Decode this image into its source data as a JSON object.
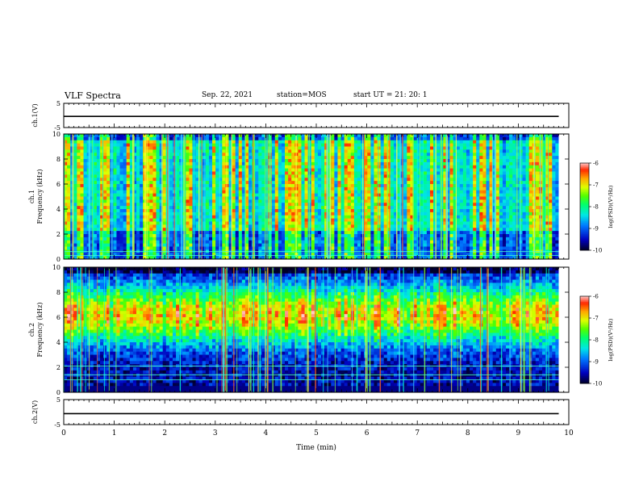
{
  "header": {
    "title": "VLF Spectra",
    "date": "Sep. 22, 2021",
    "station": "station=MOS",
    "start_ut": "start UT =  21: 20: 1"
  },
  "colors": {
    "spectrum": [
      "#000000",
      "#1400a8",
      "#0020ff",
      "#0090ff",
      "#00e0ff",
      "#00ff80",
      "#40ff00",
      "#c8ff00",
      "#ffff00",
      "#ff9000",
      "#ff2000",
      "#d0d0d0",
      "#ffffff"
    ],
    "trace": "#000000"
  },
  "chart_data": [
    {
      "type": "line",
      "panel": "ch1-waveform",
      "ylabel": "ch.1(V)",
      "ylim": [
        -5,
        5
      ],
      "yticks": [
        "5",
        "-5"
      ],
      "x": [
        0,
        9.8
      ],
      "y": [
        -0.4,
        -0.4
      ]
    },
    {
      "type": "heatmap",
      "panel": "ch1-spectrogram",
      "ylabel": "ch.1\nFrequency  (kHz)",
      "ylim": [
        0,
        10
      ],
      "yticks": [
        "0",
        "2",
        "4",
        "6",
        "8",
        "10"
      ],
      "xlim": [
        0,
        9.8
      ],
      "colorbar": {
        "label": "log(PSD)(V²/Hz)",
        "range": [
          -10,
          -6
        ],
        "ticks": [
          "-6",
          "-7",
          "-8",
          "-9",
          "-10"
        ]
      },
      "description_levels": {
        "background_low": -9.5,
        "burst_peak": -6.8,
        "narrowband_lines_kHz": [
          0.3,
          0.6
        ]
      }
    },
    {
      "type": "heatmap",
      "panel": "ch2-spectrogram",
      "ylabel": "ch.2\nFrequency  (kHz)",
      "ylim": [
        0,
        10
      ],
      "yticks": [
        "0",
        "2",
        "4",
        "6",
        "8",
        "10"
      ],
      "xlim": [
        0,
        9.8
      ],
      "colorbar": {
        "label": "log(PSD)(V²/Hz)",
        "range": [
          -10,
          -6
        ],
        "ticks": [
          "-6",
          "-7",
          "-8",
          "-9",
          "-10"
        ]
      },
      "description_levels": {
        "band_center_kHz": 6.2,
        "band_peak": -6.8,
        "narrowband_lines_kHz": [
          1.0,
          1.4,
          2.1
        ]
      }
    },
    {
      "type": "line",
      "panel": "ch2-waveform",
      "ylabel": "ch.2(V)",
      "ylim": [
        -5,
        5
      ],
      "yticks": [
        "5",
        "-5"
      ],
      "x": [
        0,
        9.8
      ],
      "y": [
        -0.6,
        -0.6
      ]
    }
  ],
  "xaxis": {
    "label": "Time  (min)",
    "ticks": [
      "0",
      "1",
      "2",
      "3",
      "4",
      "5",
      "6",
      "7",
      "8",
      "9",
      "10"
    ],
    "xlim": [
      0,
      10
    ]
  }
}
